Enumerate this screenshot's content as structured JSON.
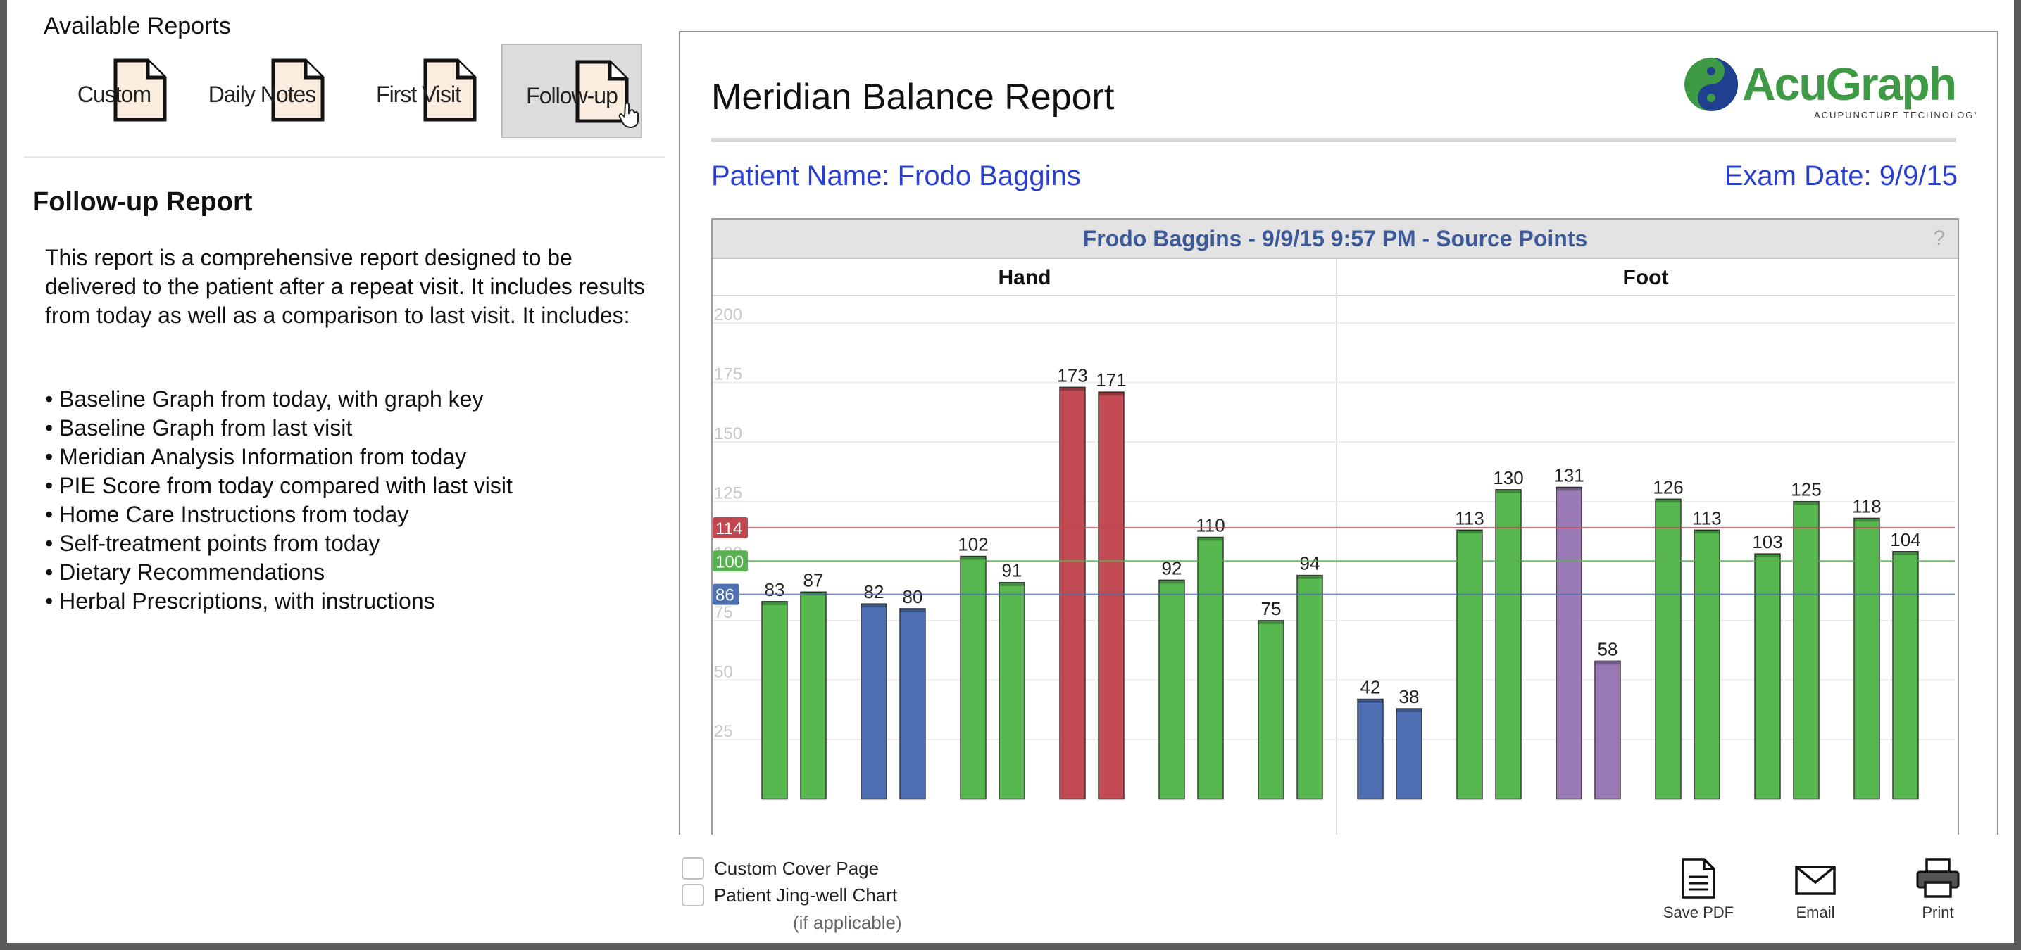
{
  "sidebar": {
    "title": "Available Reports",
    "tiles": [
      {
        "label": "Custom"
      },
      {
        "label": "Daily Notes"
      },
      {
        "label": "First Visit"
      },
      {
        "label": "Follow-up",
        "selected": true
      }
    ],
    "report_heading": "Follow-up Report",
    "description": "This report is a comprehensive report designed to be delivered to the patient after a repeat visit. It includes results from today as well as a comparison to last visit. It includes:",
    "bullets": [
      "Baseline Graph from today, with graph key",
      "Baseline Graph from last visit",
      "Meridian Analysis Information from today",
      "PIE Score from today compared with last visit",
      "Home Care Instructions from today",
      "Self-treatment points from today",
      "Dietary Recommendations",
      "Herbal Prescriptions, with instructions"
    ]
  },
  "report": {
    "title": "Meridian Balance Report",
    "logo_text": "AcuGraph",
    "logo_tagline": "ACUPUNCTURE TECHNOLOGY",
    "patient_name": "Patient Name: Frodo Baggins",
    "exam_date": "Exam Date: 9/9/15",
    "chart_header": "Frodo Baggins - 9/9/15 9:57 PM - Source Points",
    "help": "?"
  },
  "chart_data": {
    "type": "bar",
    "title": "Frodo Baggins - 9/9/15 9:57 PM - Source Points",
    "groups": [
      "Hand",
      "Foot"
    ],
    "ylim": [
      0,
      200
    ],
    "yticks": [
      25,
      50,
      75,
      100,
      125,
      150,
      175,
      200
    ],
    "reference_lines": [
      {
        "value": 114,
        "label": "114",
        "color": "#c0474f"
      },
      {
        "value": 100,
        "label": "100",
        "color": "#57b34f"
      },
      {
        "value": 86,
        "label": "86",
        "color": "#4e6fb0"
      }
    ],
    "bars": [
      {
        "group": "Hand",
        "value": 83,
        "color": "green"
      },
      {
        "group": "Hand",
        "value": 87,
        "color": "green"
      },
      {
        "group": "Hand",
        "value": 82,
        "color": "blue"
      },
      {
        "group": "Hand",
        "value": 80,
        "color": "blue"
      },
      {
        "group": "Hand",
        "value": 102,
        "color": "green"
      },
      {
        "group": "Hand",
        "value": 91,
        "color": "green"
      },
      {
        "group": "Hand",
        "value": 173,
        "color": "red"
      },
      {
        "group": "Hand",
        "value": 171,
        "color": "red"
      },
      {
        "group": "Hand",
        "value": 92,
        "color": "green"
      },
      {
        "group": "Hand",
        "value": 110,
        "color": "green"
      },
      {
        "group": "Hand",
        "value": 75,
        "color": "green"
      },
      {
        "group": "Hand",
        "value": 94,
        "color": "green"
      },
      {
        "group": "Foot",
        "value": 42,
        "color": "blue"
      },
      {
        "group": "Foot",
        "value": 38,
        "color": "blue"
      },
      {
        "group": "Foot",
        "value": 113,
        "color": "green"
      },
      {
        "group": "Foot",
        "value": 130,
        "color": "green"
      },
      {
        "group": "Foot",
        "value": 131,
        "color": "purple"
      },
      {
        "group": "Foot",
        "value": 58,
        "color": "purple"
      },
      {
        "group": "Foot",
        "value": 126,
        "color": "green"
      },
      {
        "group": "Foot",
        "value": 113,
        "color": "green"
      },
      {
        "group": "Foot",
        "value": 103,
        "color": "green"
      },
      {
        "group": "Foot",
        "value": 125,
        "color": "green"
      },
      {
        "group": "Foot",
        "value": 118,
        "color": "green"
      },
      {
        "group": "Foot",
        "value": 104,
        "color": "green"
      }
    ],
    "palette": {
      "green": "#56b84f",
      "blue": "#4d6eb3",
      "red": "#c24a53",
      "purple": "#9a7ab5"
    }
  },
  "options": {
    "custom_cover": "Custom Cover Page",
    "jing_well": "Patient Jing-well Chart",
    "jing_note": "(if applicable)"
  },
  "actions": {
    "save_pdf": "Save PDF",
    "email": "Email",
    "print": "Print"
  }
}
